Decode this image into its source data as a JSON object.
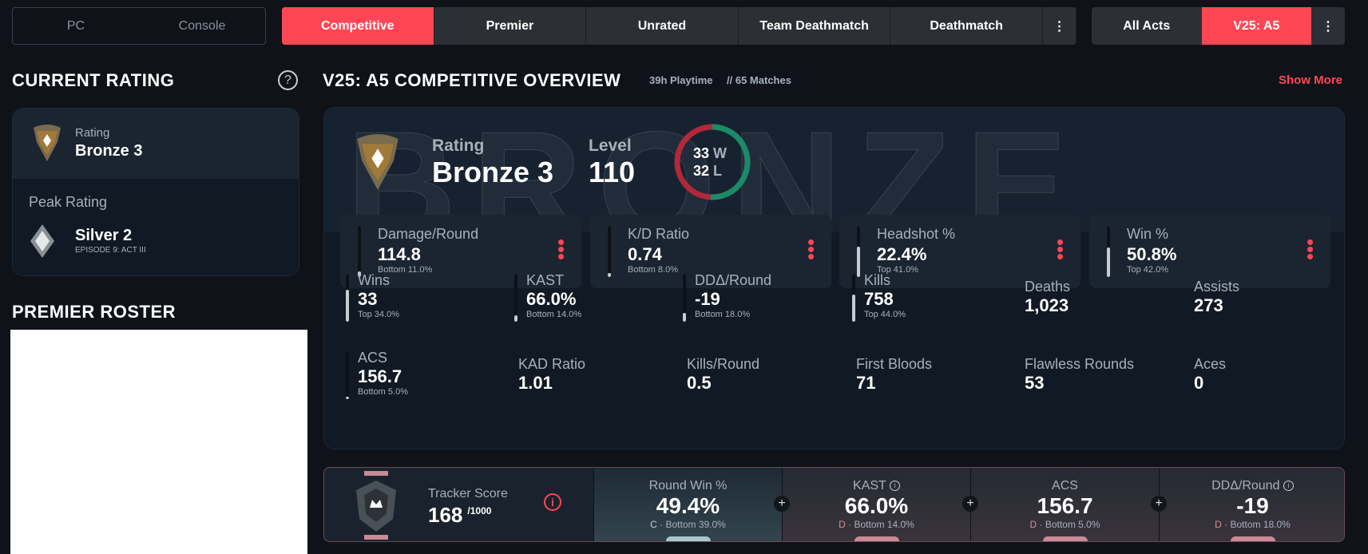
{
  "platform": {
    "tabs": [
      "PC",
      "Console"
    ]
  },
  "modes": {
    "tabs": [
      "Competitive",
      "Premier",
      "Unrated",
      "Team Deathmatch",
      "Deathmatch"
    ],
    "active": "Competitive"
  },
  "acts": {
    "tabs": [
      "All Acts",
      "V25: A5"
    ],
    "active": "V25: A5"
  },
  "current_rating": {
    "title": "CURRENT RATING",
    "rating_label": "Rating",
    "rating": "Bronze 3",
    "peak_label": "Peak Rating",
    "peak": "Silver 2",
    "peak_episode": "EPISODE 9: ACT III"
  },
  "premier": {
    "title": "PREMIER ROSTER"
  },
  "overview": {
    "title": "V25: A5 COMPETITIVE OVERVIEW",
    "playtime": "39h Playtime",
    "matches": "// 65 Matches",
    "show_more": "Show More",
    "watermark": "BRONZE",
    "rating_label": "Rating",
    "rating": "Bronze 3",
    "level_label": "Level",
    "level": "110",
    "wins": "33",
    "wins_letter": "W",
    "losses": "32",
    "losses_letter": "L",
    "cards": [
      {
        "label": "Damage/Round",
        "value": "114.8",
        "sub": "Bottom 11.0%",
        "pct": 11
      },
      {
        "label": "K/D Ratio",
        "value": "0.74",
        "sub": "Bottom 8.0%",
        "pct": 8
      },
      {
        "label": "Headshot %",
        "value": "22.4%",
        "sub": "Top 41.0%",
        "pct": 59
      },
      {
        "label": "Win %",
        "value": "50.8%",
        "sub": "Top 42.0%",
        "pct": 58
      }
    ],
    "stats": [
      {
        "label": "Wins",
        "value": "33",
        "sub": "Top 34.0%",
        "pct": 66
      },
      {
        "label": "KAST",
        "value": "66.0%",
        "sub": "Bottom 14.0%",
        "pct": 14
      },
      {
        "label": "DDΔ/Round",
        "value": "-19",
        "sub": "Bottom 18.0%",
        "pct": 18
      },
      {
        "label": "Kills",
        "value": "758",
        "sub": "Top 44.0%",
        "pct": 56
      },
      {
        "label": "Deaths",
        "value": "1,023"
      },
      {
        "label": "Assists",
        "value": "273"
      },
      {
        "label": "ACS",
        "value": "156.7",
        "sub": "Bottom 5.0%",
        "pct": 5
      },
      {
        "label": "KAD Ratio",
        "value": "1.01"
      },
      {
        "label": "Kills/Round",
        "value": "0.5"
      },
      {
        "label": "First Bloods",
        "value": "71"
      },
      {
        "label": "Flawless Rounds",
        "value": "53"
      },
      {
        "label": "Aces",
        "value": "0"
      }
    ]
  },
  "tracker": {
    "label": "Tracker Score",
    "score": "168",
    "max": "/1000",
    "cols": [
      {
        "label": "Round Win %",
        "value": "49.4%",
        "grade": "C",
        "sub": "· Bottom 39.0%"
      },
      {
        "label": "KAST",
        "value": "66.0%",
        "grade": "D",
        "sub": "· Bottom 14.0%"
      },
      {
        "label": "ACS",
        "value": "156.7",
        "grade": "D",
        "sub": "· Bottom 5.0%"
      },
      {
        "label": "DDΔ/Round",
        "value": "-19",
        "grade": "D",
        "sub": "· Bottom 18.0%"
      }
    ]
  },
  "colors": {
    "accent": "#ff4655",
    "win": "#1a8a6a",
    "loss": "#b0283a",
    "bg": "#0f1319"
  }
}
